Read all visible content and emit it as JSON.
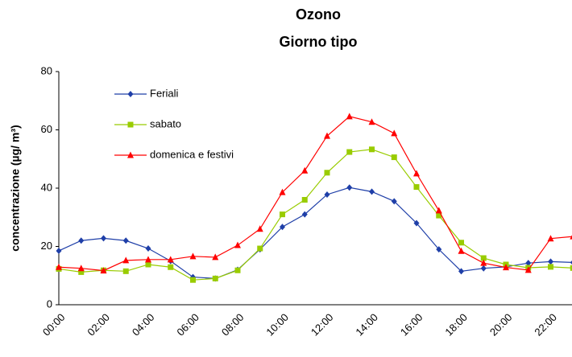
{
  "chart_data": {
    "type": "line",
    "title": "Ozono",
    "subtitle": "Giorno tipo",
    "y_label": "concentrazione (µg/ m³)",
    "categories": [
      "00:00",
      null,
      "02:00",
      null,
      "04:00",
      null,
      "06:00",
      null,
      "08:00",
      null,
      "10:00",
      null,
      "12:00",
      null,
      "14:00",
      null,
      "16:00",
      null,
      "18:00",
      null,
      "20:00",
      null,
      "22:00",
      null
    ],
    "series": [
      {
        "name": "Feriali",
        "color": "#1f3fa8",
        "marker": "diamond",
        "values": [
          18.5,
          22,
          22.8,
          22,
          19.3,
          15,
          9.5,
          9,
          12,
          19,
          26.7,
          31,
          37.8,
          40.2,
          38.8,
          35.5,
          28,
          19,
          11.5,
          12.5,
          13,
          14.3,
          14.8,
          14.5
        ]
      },
      {
        "name": "sabato",
        "color": "#99cc00",
        "marker": "square",
        "values": [
          12.3,
          11.2,
          11.8,
          11.5,
          13.8,
          12.9,
          8.5,
          9,
          11.8,
          19.3,
          31,
          36,
          45.3,
          52.4,
          53.3,
          50.6,
          40.4,
          30.6,
          21.3,
          16,
          13.8,
          12.7,
          13,
          12.6
        ]
      },
      {
        "name": "domenica e festivi",
        "color": "#ff0000",
        "marker": "triangle",
        "values": [
          12.9,
          12.5,
          11.7,
          15.2,
          15.5,
          15.5,
          16.6,
          16.3,
          20.4,
          26,
          38.6,
          46,
          57.9,
          64.6,
          62.7,
          58.8,
          45,
          32.3,
          18.4,
          14.3,
          12.8,
          11.9,
          22.7,
          23.4
        ]
      }
    ],
    "ylim": [
      0,
      80
    ],
    "yticks": [
      0,
      20,
      40,
      60,
      80
    ],
    "grid": false,
    "legend": "top-left"
  }
}
